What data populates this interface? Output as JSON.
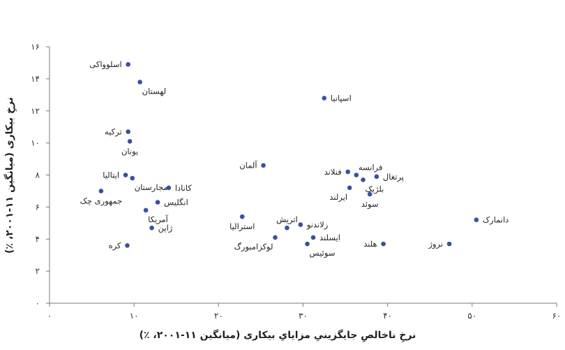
{
  "chart_data": {
    "type": "scatter",
    "xlabel": "نرخِ ناخالصِ جایگزینیِ مزایایِ بیکاری (میانگین ۱۱-۲۰۰۱، ٪)",
    "ylabel": "نرخِ بیکاری (میانگین ۱۱-۲۰۰۱، ٪)",
    "xlim": [
      0,
      60
    ],
    "ylim": [
      0,
      16
    ],
    "x_ticks": [
      0,
      10,
      20,
      30,
      40,
      50,
      60
    ],
    "x_tick_labels": [
      "۰",
      "۱۰",
      "۲۰",
      "۳۰",
      "۴۰",
      "۵۰",
      "۶۰"
    ],
    "y_ticks": [
      0,
      2,
      4,
      6,
      8,
      10,
      12,
      14,
      16
    ],
    "y_tick_labels": [
      "۰",
      "۲",
      "۴",
      "۶",
      "۸",
      "۱۰",
      "۱۲",
      "۱۴",
      "۱۶"
    ],
    "grid": false,
    "marker_color": "#3a4fa3",
    "points": [
      {
        "label": "اسلوواکی",
        "x": 9.3,
        "y": 14.9,
        "label_pos": "left"
      },
      {
        "label": "لهستان",
        "x": 10.7,
        "y": 13.8,
        "label_pos": "below-right"
      },
      {
        "label": "اسپانیا",
        "x": 32.5,
        "y": 12.8,
        "label_pos": "right"
      },
      {
        "label": "ترکیه",
        "x": 9.3,
        "y": 10.7,
        "label_pos": "left"
      },
      {
        "label": "یونان",
        "x": 9.5,
        "y": 10.1,
        "label_pos": "below"
      },
      {
        "label": "آلمان",
        "x": 25.3,
        "y": 8.6,
        "label_pos": "left"
      },
      {
        "label": "فنلاند",
        "x": 35.3,
        "y": 8.2,
        "label_pos": "left"
      },
      {
        "label": "فرانسه",
        "x": 36.3,
        "y": 8.0,
        "label_pos": "above-right"
      },
      {
        "label": "پرتغال",
        "x": 38.7,
        "y": 7.9,
        "label_pos": "right"
      },
      {
        "label": "بلژیک",
        "x": 37.1,
        "y": 7.7,
        "label_pos": "below-right"
      },
      {
        "label": "ایرلند",
        "x": 35.5,
        "y": 7.2,
        "label_pos": "below-left"
      },
      {
        "label": "سوئد",
        "x": 37.9,
        "y": 6.8,
        "label_pos": "below"
      },
      {
        "label": "ایتالیا",
        "x": 9.0,
        "y": 8.0,
        "label_pos": "left"
      },
      {
        "label": "مجارستان",
        "x": 9.8,
        "y": 7.8,
        "label_pos": "below-right"
      },
      {
        "label": "کانادا",
        "x": 14.1,
        "y": 7.2,
        "label_pos": "right"
      },
      {
        "label": "جمهوری چک",
        "x": 6.1,
        "y": 7.0,
        "label_pos": "below"
      },
      {
        "label": "انگلیس",
        "x": 12.8,
        "y": 6.3,
        "label_pos": "right"
      },
      {
        "label": "آمریکا",
        "x": 11.4,
        "y": 5.8,
        "label_pos": "below-right"
      },
      {
        "label": "ژاپن",
        "x": 12.1,
        "y": 4.7,
        "label_pos": "right"
      },
      {
        "label": "استرالیا",
        "x": 22.8,
        "y": 5.4,
        "label_pos": "below"
      },
      {
        "label": "اتریش",
        "x": 28.1,
        "y": 4.7,
        "label_pos": "above"
      },
      {
        "label": "زلاندنو",
        "x": 29.7,
        "y": 4.9,
        "label_pos": "right"
      },
      {
        "label": "ایسلند",
        "x": 31.2,
        "y": 4.1,
        "label_pos": "right"
      },
      {
        "label": "لوکزامبورگ",
        "x": 26.7,
        "y": 4.1,
        "label_pos": "below-left"
      },
      {
        "label": "سوئیس",
        "x": 30.5,
        "y": 3.7,
        "label_pos": "below-right"
      },
      {
        "label": "کره",
        "x": 9.2,
        "y": 3.6,
        "label_pos": "left"
      },
      {
        "label": "هلند",
        "x": 39.5,
        "y": 3.7,
        "label_pos": "left"
      },
      {
        "label": "نروژ",
        "x": 47.3,
        "y": 3.7,
        "label_pos": "left"
      },
      {
        "label": "دانمارک",
        "x": 50.5,
        "y": 5.2,
        "label_pos": "right"
      }
    ]
  }
}
